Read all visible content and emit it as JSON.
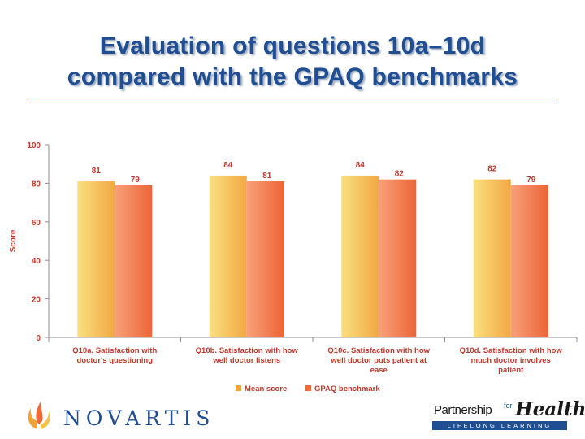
{
  "title_line1": "Evaluation of questions 10a–10d",
  "title_line2": "compared with the GPAQ benchmarks",
  "chart_data": {
    "type": "bar",
    "ylabel": "Score",
    "ylim": [
      0,
      100
    ],
    "yticks": [
      0,
      20,
      40,
      60,
      80,
      100
    ],
    "legend_position": "bottom",
    "categories": [
      [
        "Q10a. Satisfaction with",
        "doctor's questioning"
      ],
      [
        "Q10b. Satisfaction with how",
        "well doctor listens"
      ],
      [
        "Q10c. Satisfaction with how",
        "well doctor puts patient at",
        "ease"
      ],
      [
        "Q10d. Satisfaction with how",
        "much doctor involves",
        "patient"
      ]
    ],
    "series": [
      {
        "name": "Mean score",
        "values": [
          81,
          84,
          84,
          82
        ],
        "color_light": "#f7d76b",
        "color_dark": "#f0a33a"
      },
      {
        "name": "GPAQ benchmark",
        "values": [
          79,
          81,
          82,
          79
        ],
        "color_light": "#f9a276",
        "color_dark": "#ee6a3a"
      }
    ]
  },
  "logos": {
    "novartis": "NOVARTIS",
    "pfh_partnership": "Partnership",
    "pfh_for": "for",
    "pfh_health": "Health",
    "pfh_tagline": "LIFELONG LEARNING"
  },
  "colors": {
    "title": "#1f4e93",
    "axis_text": "#c0392b",
    "axis": "#8c8c8c"
  }
}
